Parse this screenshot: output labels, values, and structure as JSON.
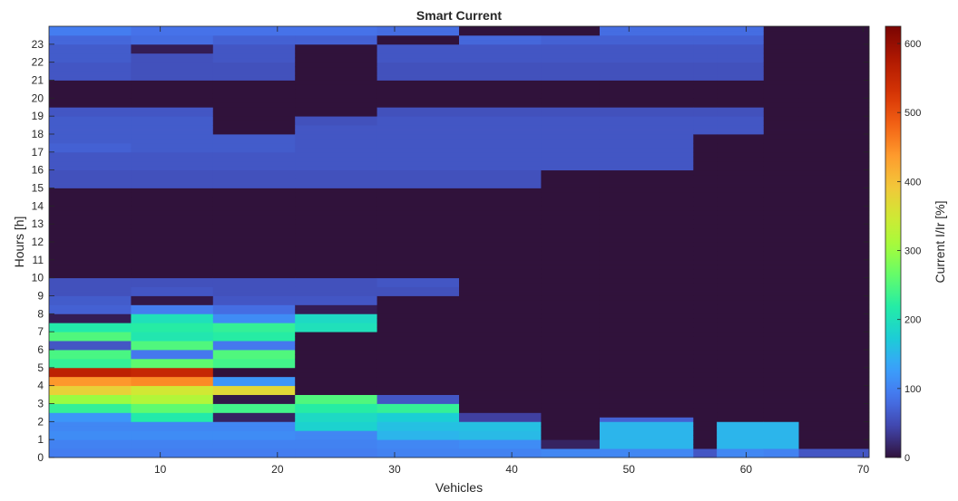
{
  "chart_data": {
    "type": "heatmap",
    "title": "Smart Current",
    "xlabel": "Vehicles",
    "ylabel": "Hours [h]",
    "colorbar_label": "Current I/Ir [%]",
    "colormap": "turbo",
    "xlim": [
      0.5,
      70.5
    ],
    "ylim": [
      0,
      24
    ],
    "clim": [
      0,
      625
    ],
    "xticks": [
      10,
      20,
      30,
      40,
      50,
      60,
      70
    ],
    "yticks": [
      0,
      1,
      2,
      3,
      4,
      5,
      6,
      7,
      8,
      9,
      10,
      11,
      12,
      13,
      14,
      15,
      16,
      17,
      18,
      19,
      20,
      21,
      22,
      23
    ],
    "colorbar_ticks": [
      0,
      100,
      200,
      300,
      400,
      500,
      600
    ],
    "vehicle_groups": [
      {
        "from": 1,
        "to": 7,
        "profile": [
          [
            0,
            95
          ],
          [
            0.5,
            100
          ],
          [
            1,
            110
          ],
          [
            1.5,
            105
          ],
          [
            2,
            120
          ],
          [
            2.5,
            230
          ],
          [
            3,
            300
          ],
          [
            3.5,
            380
          ],
          [
            4,
            440
          ],
          [
            4.5,
            560
          ],
          [
            5,
            230
          ],
          [
            5.5,
            245
          ],
          [
            6,
            60
          ],
          [
            6.5,
            250
          ],
          [
            7,
            215
          ],
          [
            7.5,
            10
          ],
          [
            8,
            70
          ],
          [
            8.5,
            65
          ],
          [
            9,
            55
          ],
          [
            9.5,
            55
          ],
          [
            10,
            0
          ],
          [
            14,
            0
          ],
          [
            15,
            55
          ],
          [
            16,
            60
          ],
          [
            17,
            70
          ],
          [
            17.5,
            65
          ],
          [
            18,
            65
          ],
          [
            19,
            60
          ],
          [
            19.5,
            0
          ],
          [
            21,
            60
          ],
          [
            22,
            65
          ],
          [
            23,
            75
          ],
          [
            23.5,
            95
          ]
        ]
      },
      {
        "from": 8,
        "to": 14,
        "profile": [
          [
            0,
            95
          ],
          [
            0.5,
            100
          ],
          [
            1,
            110
          ],
          [
            1.5,
            105
          ],
          [
            2,
            215
          ],
          [
            2.5,
            260
          ],
          [
            3,
            320
          ],
          [
            3.5,
            350
          ],
          [
            4,
            450
          ],
          [
            4.5,
            550
          ],
          [
            5,
            260
          ],
          [
            5.5,
            90
          ],
          [
            6,
            250
          ],
          [
            6.5,
            210
          ],
          [
            7,
            220
          ],
          [
            7.5,
            200
          ],
          [
            8,
            95
          ],
          [
            8.5,
            5
          ],
          [
            9,
            60
          ],
          [
            9.5,
            55
          ],
          [
            10,
            0
          ],
          [
            14,
            0
          ],
          [
            15,
            55
          ],
          [
            16,
            60
          ],
          [
            17,
            65
          ],
          [
            18,
            65
          ],
          [
            19,
            60
          ],
          [
            19.5,
            0
          ],
          [
            21,
            55
          ],
          [
            22,
            55
          ],
          [
            22.5,
            10
          ],
          [
            23,
            80
          ],
          [
            23.5,
            85
          ]
        ]
      },
      {
        "from": 15,
        "to": 21,
        "profile": [
          [
            0,
            95
          ],
          [
            0.5,
            100
          ],
          [
            1,
            110
          ],
          [
            1.5,
            105
          ],
          [
            2,
            15
          ],
          [
            2.5,
            240
          ],
          [
            3,
            5
          ],
          [
            3.5,
            370
          ],
          [
            4,
            120
          ],
          [
            4.5,
            0
          ],
          [
            5,
            240
          ],
          [
            5.5,
            250
          ],
          [
            6,
            90
          ],
          [
            6.5,
            220
          ],
          [
            7,
            230
          ],
          [
            7.5,
            110
          ],
          [
            8,
            80
          ],
          [
            8.5,
            60
          ],
          [
            9,
            55
          ],
          [
            9.5,
            55
          ],
          [
            10,
            0
          ],
          [
            14,
            0
          ],
          [
            15,
            55
          ],
          [
            16,
            60
          ],
          [
            17,
            65
          ],
          [
            18,
            0
          ],
          [
            19,
            0
          ],
          [
            21,
            55
          ],
          [
            22,
            60
          ],
          [
            23,
            70
          ],
          [
            23.5,
            85
          ]
        ]
      },
      {
        "from": 22,
        "to": 28,
        "profile": [
          [
            0,
            95
          ],
          [
            0.5,
            100
          ],
          [
            1,
            105
          ],
          [
            1.5,
            180
          ],
          [
            2,
            190
          ],
          [
            2.5,
            220
          ],
          [
            3,
            250
          ],
          [
            3.5,
            0
          ],
          [
            4,
            0
          ],
          [
            5,
            0
          ],
          [
            6,
            0
          ],
          [
            7,
            200
          ],
          [
            7.5,
            190
          ],
          [
            8,
            10
          ],
          [
            8.5,
            60
          ],
          [
            9,
            55
          ],
          [
            9.5,
            55
          ],
          [
            10,
            0
          ],
          [
            14,
            0
          ],
          [
            15,
            55
          ],
          [
            16,
            60
          ],
          [
            17,
            60
          ],
          [
            18,
            60
          ],
          [
            18.5,
            55
          ],
          [
            19,
            0
          ],
          [
            21,
            0
          ],
          [
            23,
            70
          ],
          [
            23.5,
            85
          ]
        ]
      },
      {
        "from": 29,
        "to": 35,
        "profile": [
          [
            0,
            100
          ],
          [
            0.5,
            105
          ],
          [
            1,
            150
          ],
          [
            1.5,
            160
          ],
          [
            2,
            175
          ],
          [
            2.5,
            230
          ],
          [
            3,
            60
          ],
          [
            3.5,
            0
          ],
          [
            8,
            0
          ],
          [
            9,
            55
          ],
          [
            9.5,
            60
          ],
          [
            10,
            0
          ],
          [
            14,
            0
          ],
          [
            15,
            55
          ],
          [
            16,
            60
          ],
          [
            17,
            60
          ],
          [
            18,
            60
          ],
          [
            19,
            55
          ],
          [
            19.5,
            0
          ],
          [
            21,
            55
          ],
          [
            22,
            60
          ],
          [
            23,
            0
          ],
          [
            23.5,
            80
          ]
        ]
      },
      {
        "from": 36,
        "to": 42,
        "profile": [
          [
            0,
            100
          ],
          [
            0.5,
            110
          ],
          [
            1,
            155
          ],
          [
            1.5,
            160
          ],
          [
            2,
            40
          ],
          [
            2.5,
            0
          ],
          [
            15,
            55
          ],
          [
            16,
            60
          ],
          [
            17,
            60
          ],
          [
            18,
            60
          ],
          [
            19,
            55
          ],
          [
            19.5,
            0
          ],
          [
            21,
            55
          ],
          [
            22,
            60
          ],
          [
            23,
            75
          ],
          [
            23.5,
            0
          ]
        ]
      },
      {
        "from": 43,
        "to": 47,
        "profile": [
          [
            0,
            105
          ],
          [
            0.5,
            15
          ],
          [
            1,
            0
          ],
          [
            16,
            60
          ],
          [
            17,
            60
          ],
          [
            18,
            60
          ],
          [
            19,
            55
          ],
          [
            19.5,
            0
          ],
          [
            21,
            55
          ],
          [
            22,
            60
          ],
          [
            23,
            70
          ],
          [
            23.5,
            0
          ]
        ]
      },
      {
        "from": 48,
        "to": 55,
        "profile": [
          [
            0,
            105
          ],
          [
            0.5,
            150
          ],
          [
            2,
            70
          ],
          [
            2.2,
            0
          ],
          [
            16,
            60
          ],
          [
            16.5,
            60
          ],
          [
            17,
            60
          ],
          [
            18,
            60
          ],
          [
            19,
            55
          ],
          [
            19.5,
            0
          ],
          [
            21,
            55
          ],
          [
            22,
            60
          ],
          [
            23,
            70
          ],
          [
            23.5,
            80
          ]
        ]
      },
      {
        "from": 56,
        "to": 57,
        "profile": [
          [
            0,
            60
          ],
          [
            0.5,
            0
          ],
          [
            17,
            0
          ],
          [
            18,
            60
          ],
          [
            19,
            55
          ],
          [
            19.5,
            0
          ],
          [
            21,
            55
          ],
          [
            22,
            60
          ],
          [
            23,
            70
          ],
          [
            23.5,
            80
          ]
        ]
      },
      {
        "from": 58,
        "to": 61,
        "profile": [
          [
            0,
            105
          ],
          [
            0.5,
            150
          ],
          [
            2,
            0
          ],
          [
            17,
            0
          ],
          [
            18,
            60
          ],
          [
            19,
            55
          ],
          [
            19.5,
            0
          ],
          [
            21,
            55
          ],
          [
            22,
            60
          ],
          [
            23,
            70
          ],
          [
            23.5,
            80
          ]
        ]
      },
      {
        "from": 62,
        "to": 64,
        "profile": [
          [
            0,
            100
          ],
          [
            0.5,
            150
          ],
          [
            2,
            0
          ]
        ]
      },
      {
        "from": 65,
        "to": 70,
        "profile": [
          [
            0,
            60
          ],
          [
            0.3,
            0
          ]
        ]
      }
    ]
  }
}
